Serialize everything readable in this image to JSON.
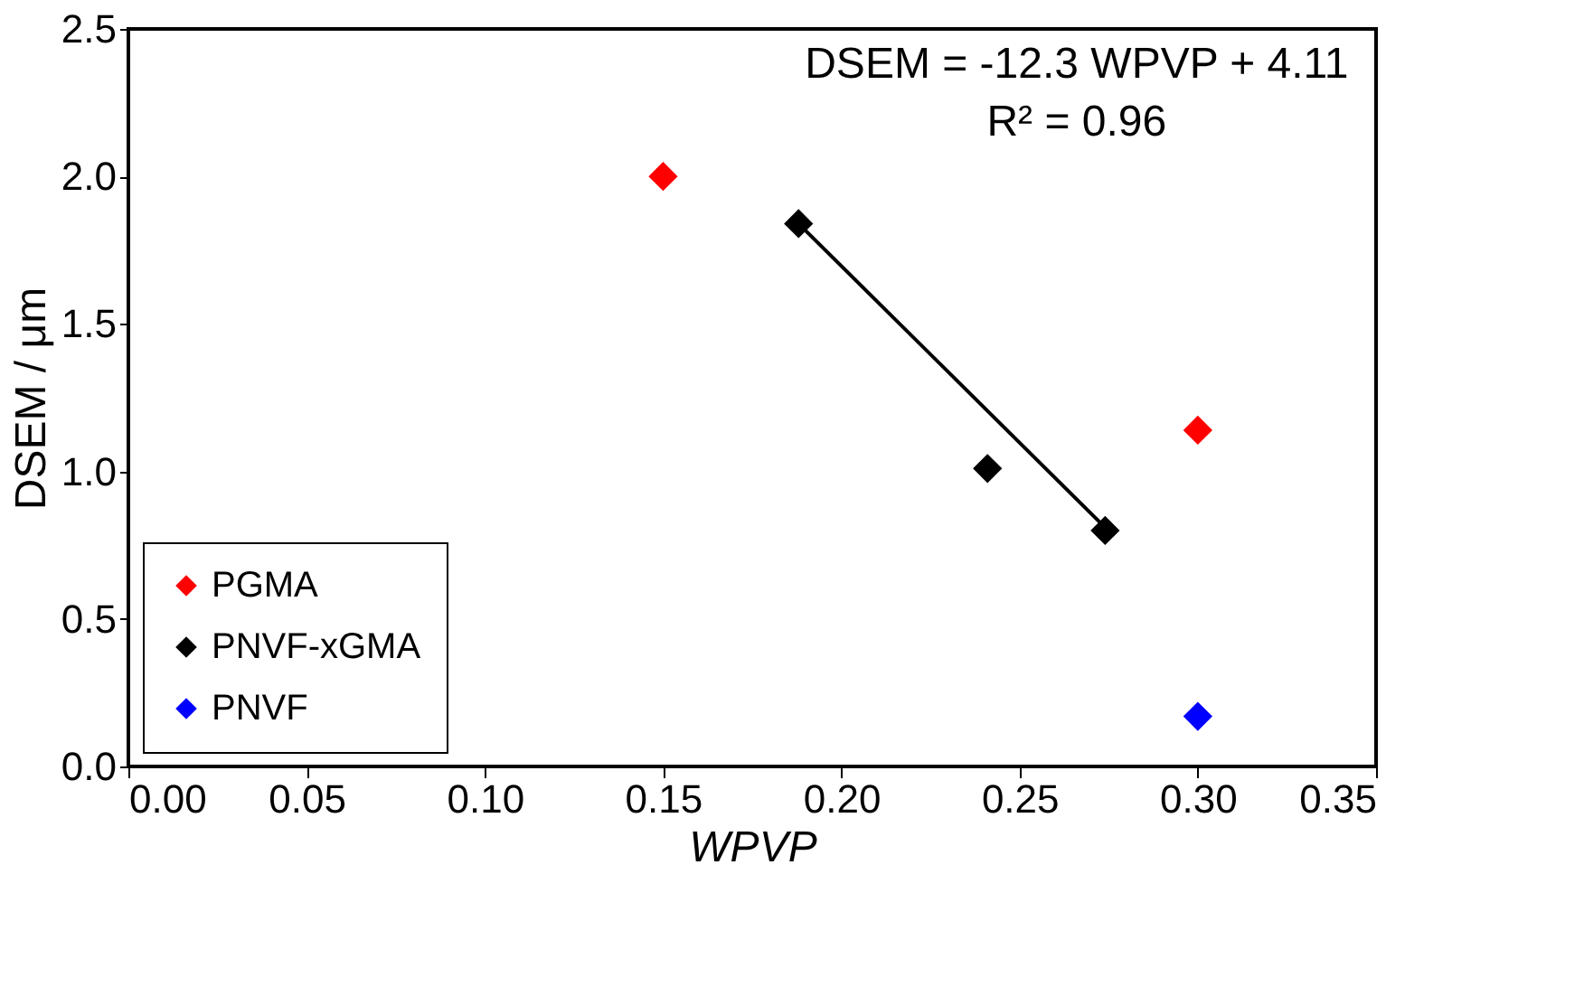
{
  "chart_data": {
    "type": "scatter",
    "xlabel": "WPVP",
    "ylabel": "DSEM / μm",
    "xlim": [
      0,
      0.35
    ],
    "xticks": [
      {
        "value": 0,
        "label": "0.00"
      },
      {
        "value": 0.05,
        "label": "0.05"
      },
      {
        "value": 0.1,
        "label": "0.10"
      },
      {
        "value": 0.15,
        "label": "0.15"
      },
      {
        "value": 0.2,
        "label": "0.20"
      },
      {
        "value": 0.25,
        "label": "0.25"
      },
      {
        "value": 0.3,
        "label": "0.30"
      },
      {
        "value": 0.35,
        "label": "0.35"
      }
    ],
    "ylim": [
      0,
      2.5
    ],
    "yticks": [
      {
        "value": 0,
        "label": "0.0"
      },
      {
        "value": 0.5,
        "label": "0.5"
      },
      {
        "value": 1,
        "label": "1.0"
      },
      {
        "value": 1.5,
        "label": "1.5"
      },
      {
        "value": 2,
        "label": "2.0"
      },
      {
        "value": 2.5,
        "label": "2.5"
      }
    ],
    "series": [
      {
        "name": "PGMA",
        "color": "#ff0000",
        "x": [
          0.15,
          0.3
        ],
        "values": [
          2.0,
          1.14
        ]
      },
      {
        "name": "PNVF-xGMA",
        "color": "#000000",
        "x": [
          0.188,
          0.241,
          0.274
        ],
        "values": [
          1.84,
          1.01,
          0.8
        ]
      },
      {
        "name": "PNVF",
        "color": "#0000ff",
        "x": [
          0.3
        ],
        "values": [
          0.17
        ]
      },
      {
        "type": "line",
        "color": "#000000",
        "marker": "none",
        "line_style": "solid",
        "x": [
          0.188,
          0.274
        ],
        "values": [
          1.84,
          0.81
        ]
      }
    ],
    "marker": "diamond",
    "legend": "bottom left",
    "grid": false,
    "annotations": [
      "DSEM = -12.3 WPVP + 4.11",
      "R² = 0.96"
    ]
  }
}
